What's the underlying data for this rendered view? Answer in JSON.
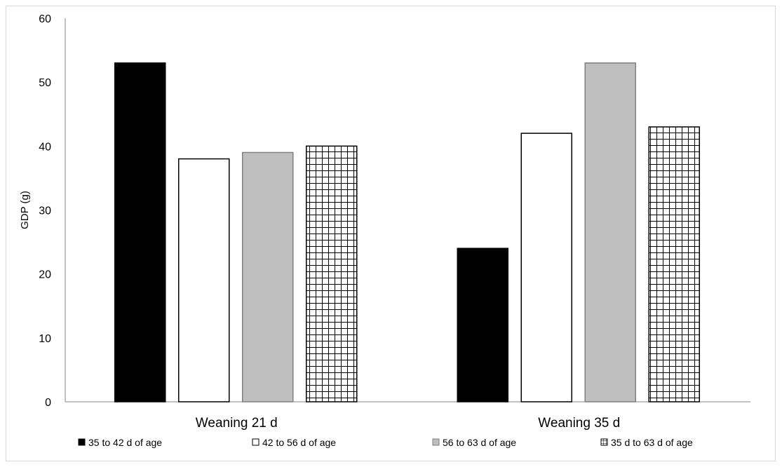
{
  "chart_data": {
    "type": "bar",
    "categories": [
      "Weaning 21 d",
      "Weaning 35 d"
    ],
    "series": [
      {
        "name": "35 to 42 d of age",
        "values": [
          53,
          24
        ],
        "fill": "#000000",
        "pattern": "solid"
      },
      {
        "name": "42 to 56 d of age",
        "values": [
          38,
          42
        ],
        "fill": "#ffffff",
        "pattern": "solid"
      },
      {
        "name": "56 to 63 d of age",
        "values": [
          39,
          53
        ],
        "fill": "#bfbfbf",
        "pattern": "solid"
      },
      {
        "name": "35 d to 63 d of age",
        "values": [
          40,
          43
        ],
        "fill": "#ffffff",
        "pattern": "grid"
      }
    ],
    "title": "",
    "xlabel": "",
    "ylabel": "GDP (g)",
    "ylim": [
      0,
      60
    ],
    "yticks": [
      "0",
      "10",
      "20",
      "30",
      "40",
      "50",
      "60"
    ],
    "grid": false,
    "legend_position": "bottom"
  }
}
